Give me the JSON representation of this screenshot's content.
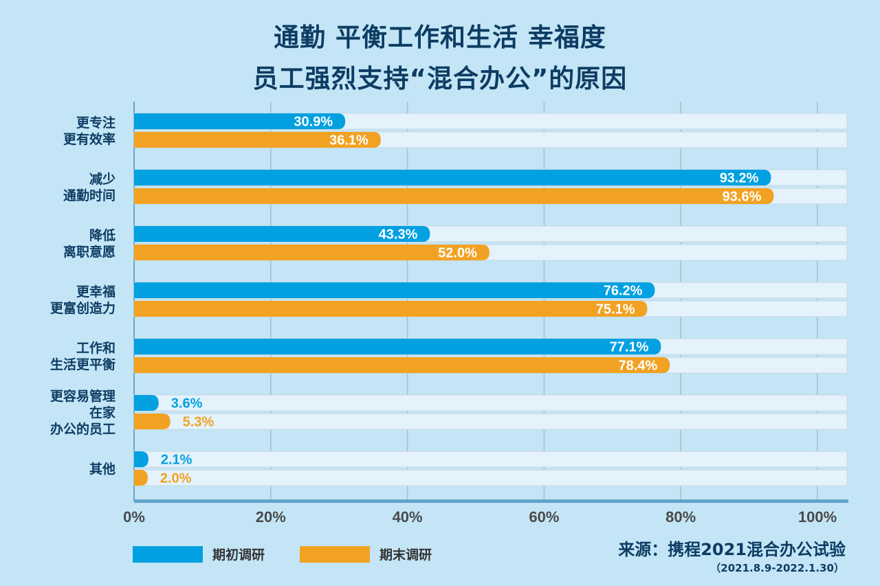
{
  "chart_data": {
    "type": "bar",
    "orientation": "horizontal",
    "title": [
      "通勤 平衡工作和生活 幸福度",
      "员工强烈支持“混合办公”的原因"
    ],
    "categories": [
      [
        "更专注",
        "更有效率"
      ],
      [
        "减少",
        "通勤时间"
      ],
      [
        "降低",
        "离职意愿"
      ],
      [
        "更幸福",
        "更富创造力"
      ],
      [
        "工作和",
        "生活更平衡"
      ],
      [
        "更容易管理",
        "在家",
        "办公的员工"
      ],
      [
        "其他"
      ]
    ],
    "series": [
      {
        "name": "期初调研",
        "color": "#00a0e1",
        "values": [
          30.9,
          93.2,
          43.3,
          76.2,
          77.1,
          3.6,
          2.1
        ]
      },
      {
        "name": "期末调研",
        "color": "#f2a222",
        "values": [
          36.1,
          93.6,
          52.0,
          75.1,
          78.4,
          5.3,
          2.0
        ]
      }
    ],
    "xlim": [
      0,
      100
    ],
    "xticks": [
      "0%",
      "20%",
      "40%",
      "60%",
      "80%",
      "100%"
    ],
    "grid": true,
    "legend_position": "bottom-left",
    "source": "来源：携程2021混合办公试验",
    "source_period": "（2021.8.9-2022.1.30）"
  }
}
